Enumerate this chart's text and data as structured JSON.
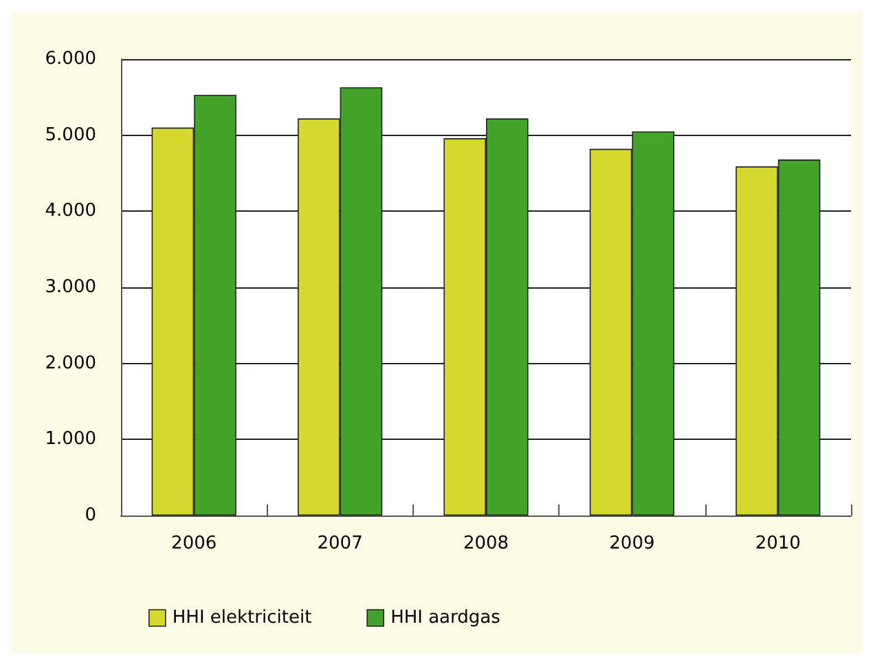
{
  "chart_data": {
    "type": "bar",
    "categories": [
      "2006",
      "2007",
      "2008",
      "2009",
      "2010"
    ],
    "series": [
      {
        "name": "HHI elektriciteit",
        "color": "#d5d92c",
        "values": [
          5100,
          5220,
          4960,
          4820,
          4590
        ]
      },
      {
        "name": "HHI aardgas",
        "color": "#43a42c",
        "values": [
          5530,
          5630,
          5220,
          5050,
          4680
        ]
      }
    ],
    "ylim": [
      0,
      6000
    ],
    "yticks": [
      {
        "value": 0,
        "label": "0"
      },
      {
        "value": 1000,
        "label": "1.000"
      },
      {
        "value": 2000,
        "label": "2.000"
      },
      {
        "value": 3000,
        "label": "3.000"
      },
      {
        "value": 4000,
        "label": "4.000"
      },
      {
        "value": 5000,
        "label": "5.000"
      },
      {
        "value": 6000,
        "label": "6.000"
      }
    ],
    "grid": "y",
    "legend": "bottom left"
  }
}
